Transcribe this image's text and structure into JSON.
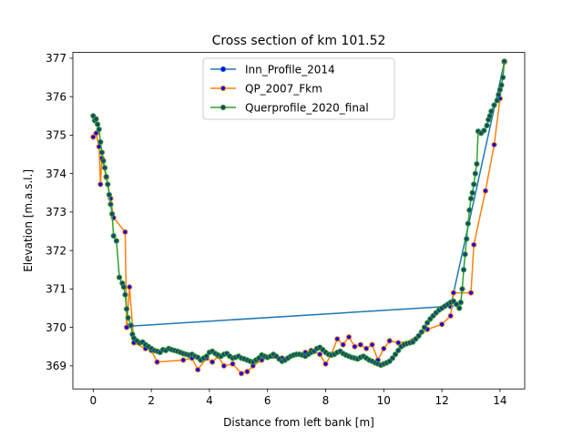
{
  "chart_data": {
    "type": "line",
    "title": "Cross section of km 101.52",
    "xlabel": "Distance from left bank [m]",
    "ylabel": "Elevation [m.a.s.l.]",
    "xlim": [
      -0.7,
      14.85
    ],
    "ylim": [
      368.4,
      377.15
    ],
    "xticks": [
      0,
      2,
      4,
      6,
      8,
      10,
      12,
      14
    ],
    "yticks": [
      369,
      370,
      371,
      372,
      373,
      374,
      375,
      376,
      377
    ],
    "grid": false,
    "legend_position": "top-center",
    "series": [
      {
        "name": "Inn_Profile_2014",
        "color": "#1f77b4",
        "marker_face": "#0000ff",
        "points": [
          [
            1.2,
            370.03
          ],
          [
            12.3,
            370.55
          ],
          [
            14.15,
            376.9
          ]
        ]
      },
      {
        "name": "QP_2007_Fkm",
        "color": "#ff7f0e",
        "marker_face": "#0000ff",
        "points": [
          [
            0.0,
            374.95
          ],
          [
            0.1,
            375.05
          ],
          [
            0.2,
            374.7
          ],
          [
            0.25,
            373.72
          ],
          [
            0.3,
            374.4
          ],
          [
            0.45,
            373.9
          ],
          [
            0.6,
            373.35
          ],
          [
            0.7,
            372.85
          ],
          [
            1.1,
            372.48
          ],
          [
            1.15,
            370.0
          ],
          [
            1.25,
            371.05
          ],
          [
            1.4,
            369.6
          ],
          [
            1.8,
            369.45
          ],
          [
            2.0,
            369.4
          ],
          [
            2.2,
            369.1
          ],
          [
            3.1,
            369.15
          ],
          [
            3.4,
            369.2
          ],
          [
            3.6,
            368.9
          ],
          [
            3.9,
            369.2
          ],
          [
            4.1,
            369.1
          ],
          [
            4.3,
            369.25
          ],
          [
            4.5,
            369.0
          ],
          [
            4.8,
            369.05
          ],
          [
            5.1,
            368.8
          ],
          [
            5.3,
            368.85
          ],
          [
            5.5,
            369.0
          ],
          [
            5.8,
            369.15
          ],
          [
            6.2,
            369.25
          ],
          [
            6.5,
            369.2
          ],
          [
            7.0,
            369.3
          ],
          [
            7.3,
            369.35
          ],
          [
            7.5,
            369.4
          ],
          [
            7.8,
            369.3
          ],
          [
            8.0,
            369.05
          ],
          [
            8.2,
            369.3
          ],
          [
            8.4,
            369.7
          ],
          [
            8.6,
            369.55
          ],
          [
            8.8,
            369.75
          ],
          [
            9.0,
            369.5
          ],
          [
            9.2,
            369.55
          ],
          [
            9.4,
            369.45
          ],
          [
            9.6,
            369.55
          ],
          [
            9.8,
            369.15
          ],
          [
            10.0,
            369.45
          ],
          [
            10.2,
            369.65
          ],
          [
            10.5,
            369.6
          ],
          [
            11.0,
            369.65
          ],
          [
            11.5,
            369.95
          ],
          [
            12.0,
            370.08
          ],
          [
            12.3,
            370.3
          ],
          [
            12.4,
            370.9
          ],
          [
            13.0,
            370.9
          ],
          [
            13.1,
            372.15
          ],
          [
            13.5,
            373.55
          ],
          [
            13.8,
            374.75
          ],
          [
            14.0,
            375.95
          ],
          [
            14.15,
            376.9
          ]
        ]
      },
      {
        "name": "Querprofile_2020_final",
        "color": "#2ca02c",
        "marker_face": "#1f3f7a",
        "points": [
          [
            0.0,
            375.5
          ],
          [
            0.05,
            375.38
          ],
          [
            0.1,
            375.42
          ],
          [
            0.15,
            375.28
          ],
          [
            0.2,
            375.15
          ],
          [
            0.25,
            374.82
          ],
          [
            0.3,
            374.55
          ],
          [
            0.35,
            374.33
          ],
          [
            0.4,
            374.15
          ],
          [
            0.45,
            373.92
          ],
          [
            0.5,
            373.72
          ],
          [
            0.55,
            373.45
          ],
          [
            0.6,
            373.2
          ],
          [
            0.65,
            372.95
          ],
          [
            0.7,
            372.38
          ],
          [
            0.8,
            372.25
          ],
          [
            0.9,
            371.3
          ],
          [
            1.0,
            371.15
          ],
          [
            1.05,
            371.05
          ],
          [
            1.1,
            370.85
          ],
          [
            1.15,
            370.48
          ],
          [
            1.2,
            370.25
          ],
          [
            1.3,
            370.05
          ],
          [
            1.35,
            369.82
          ],
          [
            1.4,
            369.72
          ],
          [
            1.5,
            369.65
          ],
          [
            1.6,
            369.6
          ],
          [
            1.7,
            369.62
          ],
          [
            1.8,
            369.55
          ],
          [
            1.9,
            369.5
          ],
          [
            2.0,
            369.45
          ],
          [
            2.1,
            369.4
          ],
          [
            2.2,
            369.38
          ],
          [
            2.3,
            369.35
          ],
          [
            2.4,
            369.42
          ],
          [
            2.5,
            369.4
          ],
          [
            2.6,
            369.45
          ],
          [
            2.7,
            369.42
          ],
          [
            2.8,
            369.4
          ],
          [
            2.9,
            369.38
          ],
          [
            3.0,
            369.35
          ],
          [
            3.1,
            369.32
          ],
          [
            3.2,
            369.3
          ],
          [
            3.3,
            369.28
          ],
          [
            3.4,
            369.3
          ],
          [
            3.5,
            369.25
          ],
          [
            3.6,
            369.22
          ],
          [
            3.7,
            369.15
          ],
          [
            3.8,
            369.2
          ],
          [
            3.9,
            369.25
          ],
          [
            4.0,
            369.35
          ],
          [
            4.1,
            369.38
          ],
          [
            4.2,
            369.32
          ],
          [
            4.3,
            369.28
          ],
          [
            4.4,
            369.25
          ],
          [
            4.5,
            369.3
          ],
          [
            4.6,
            369.32
          ],
          [
            4.7,
            369.25
          ],
          [
            4.8,
            369.2
          ],
          [
            4.9,
            369.22
          ],
          [
            5.0,
            369.25
          ],
          [
            5.1,
            369.2
          ],
          [
            5.2,
            369.18
          ],
          [
            5.3,
            369.15
          ],
          [
            5.4,
            369.12
          ],
          [
            5.5,
            369.1
          ],
          [
            5.6,
            369.15
          ],
          [
            5.7,
            369.2
          ],
          [
            5.8,
            369.28
          ],
          [
            5.9,
            369.25
          ],
          [
            6.0,
            369.22
          ],
          [
            6.1,
            369.25
          ],
          [
            6.2,
            369.3
          ],
          [
            6.3,
            369.25
          ],
          [
            6.4,
            369.18
          ],
          [
            6.5,
            369.12
          ],
          [
            6.6,
            369.15
          ],
          [
            6.7,
            369.2
          ],
          [
            6.8,
            369.25
          ],
          [
            6.9,
            369.28
          ],
          [
            7.0,
            369.3
          ],
          [
            7.1,
            369.3
          ],
          [
            7.2,
            369.28
          ],
          [
            7.3,
            369.25
          ],
          [
            7.4,
            369.3
          ],
          [
            7.5,
            369.35
          ],
          [
            7.6,
            369.38
          ],
          [
            7.7,
            369.45
          ],
          [
            7.8,
            369.48
          ],
          [
            7.9,
            369.42
          ],
          [
            8.0,
            369.35
          ],
          [
            8.1,
            369.3
          ],
          [
            8.2,
            369.28
          ],
          [
            8.3,
            369.3
          ],
          [
            8.4,
            369.35
          ],
          [
            8.5,
            369.38
          ],
          [
            8.6,
            369.32
          ],
          [
            8.7,
            369.28
          ],
          [
            8.8,
            369.25
          ],
          [
            8.9,
            369.22
          ],
          [
            9.0,
            369.2
          ],
          [
            9.1,
            369.18
          ],
          [
            9.2,
            369.22
          ],
          [
            9.3,
            369.25
          ],
          [
            9.4,
            369.2
          ],
          [
            9.5,
            369.15
          ],
          [
            9.6,
            369.12
          ],
          [
            9.7,
            369.08
          ],
          [
            9.8,
            369.05
          ],
          [
            9.9,
            369.02
          ],
          [
            10.0,
            369.05
          ],
          [
            10.1,
            369.08
          ],
          [
            10.2,
            369.12
          ],
          [
            10.3,
            369.2
          ],
          [
            10.4,
            369.3
          ],
          [
            10.5,
            369.4
          ],
          [
            10.6,
            369.5
          ],
          [
            10.7,
            369.55
          ],
          [
            10.8,
            369.58
          ],
          [
            10.9,
            369.6
          ],
          [
            11.0,
            369.62
          ],
          [
            11.1,
            369.7
          ],
          [
            11.2,
            369.78
          ],
          [
            11.3,
            369.88
          ],
          [
            11.4,
            370.0
          ],
          [
            11.5,
            370.12
          ],
          [
            11.6,
            370.22
          ],
          [
            11.7,
            370.3
          ],
          [
            11.8,
            370.38
          ],
          [
            11.9,
            370.45
          ],
          [
            12.0,
            370.5
          ],
          [
            12.1,
            370.55
          ],
          [
            12.2,
            370.6
          ],
          [
            12.3,
            370.65
          ],
          [
            12.4,
            370.68
          ],
          [
            12.5,
            370.6
          ],
          [
            12.6,
            370.5
          ],
          [
            12.65,
            370.65
          ],
          [
            12.7,
            371.0
          ],
          [
            12.75,
            371.5
          ],
          [
            12.8,
            371.9
          ],
          [
            12.85,
            372.3
          ],
          [
            12.9,
            372.7
          ],
          [
            12.95,
            373.05
          ],
          [
            13.0,
            373.35
          ],
          [
            13.05,
            373.5
          ],
          [
            13.1,
            373.72
          ],
          [
            13.15,
            374.0
          ],
          [
            13.2,
            374.25
          ],
          [
            13.25,
            375.1
          ],
          [
            13.35,
            375.05
          ],
          [
            13.45,
            375.12
          ],
          [
            13.55,
            375.25
          ],
          [
            13.6,
            375.4
          ],
          [
            13.65,
            375.5
          ],
          [
            13.7,
            375.62
          ],
          [
            13.8,
            375.78
          ],
          [
            13.9,
            375.9
          ],
          [
            13.95,
            376.05
          ],
          [
            14.0,
            376.18
          ],
          [
            14.05,
            376.3
          ],
          [
            14.1,
            376.5
          ],
          [
            14.15,
            376.92
          ]
        ]
      }
    ]
  }
}
